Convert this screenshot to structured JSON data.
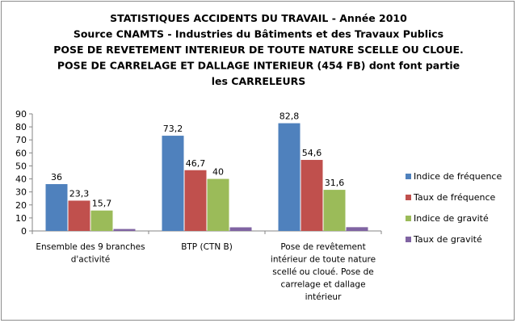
{
  "chart_data": {
    "type": "bar",
    "title_lines": [
      "STATISTIQUES ACCIDENTS DU TRAVAIL - Année 2010",
      "Source CNAMTS - Industries du Bâtiments et des Travaux Publics",
      "POSE DE REVETEMENT INTERIEUR DE TOUTE NATURE SCELLE OU CLOUE.",
      "POSE DE CARRELAGE ET DALLAGE INTERIEUR (454 FB) dont font partie",
      "les CARRELEURS"
    ],
    "categories": [
      [
        "Ensemble des 9 branches",
        "d'activité"
      ],
      [
        "BTP (CTN B)"
      ],
      [
        "Pose de revêtement",
        "intérieur de toute nature",
        "scellé ou cloué. Pose de",
        "carrelage et dallage",
        "intérieur"
      ]
    ],
    "series": [
      {
        "name": "Indice de fréquence",
        "color": "#4f81bd",
        "values": [
          36,
          73.2,
          82.8
        ],
        "labels": [
          "36",
          "73,2",
          "82,8"
        ]
      },
      {
        "name": "Taux de fréquence",
        "color": "#c0504d",
        "values": [
          23.3,
          46.7,
          54.6
        ],
        "labels": [
          "23,3",
          "46,7",
          "54,6"
        ]
      },
      {
        "name": "Indice de gravité",
        "color": "#9bbb59",
        "values": [
          15.7,
          40,
          31.6
        ],
        "labels": [
          "15,7",
          "40",
          "31,6"
        ]
      },
      {
        "name": "Taux de gravité",
        "color": "#8064a2",
        "values": [
          1.5,
          2.8,
          2.9
        ],
        "labels": null
      }
    ],
    "ylim": [
      0,
      90
    ],
    "yticks": [
      "0",
      "10",
      "20",
      "30",
      "40",
      "50",
      "60",
      "70",
      "80",
      "90"
    ],
    "grid": false,
    "legend_position": "right"
  }
}
